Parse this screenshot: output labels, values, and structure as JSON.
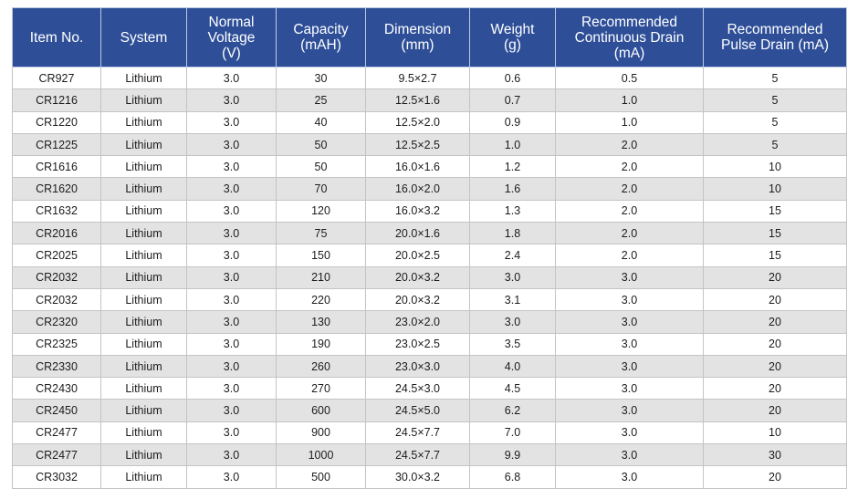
{
  "headers": [
    "Item No.",
    "System",
    "Normal\nVoltage\n(V)",
    "Capacity\n(mAH)",
    "Dimension\n(mm)",
    "Weight\n(g)",
    "Recommended\nContinuous Drain\n(mA)",
    "Recommended\nPulse Drain (mA)"
  ],
  "rows": [
    [
      "CR927",
      "Lithium",
      "3.0",
      "30",
      "9.5×2.7",
      "0.6",
      "0.5",
      "5"
    ],
    [
      "CR1216",
      "Lithium",
      "3.0",
      "25",
      "12.5×1.6",
      "0.7",
      "1.0",
      "5"
    ],
    [
      "CR1220",
      "Lithium",
      "3.0",
      "40",
      "12.5×2.0",
      "0.9",
      "1.0",
      "5"
    ],
    [
      "CR1225",
      "Lithium",
      "3.0",
      "50",
      "12.5×2.5",
      "1.0",
      "2.0",
      "5"
    ],
    [
      "CR1616",
      "Lithium",
      "3.0",
      "50",
      "16.0×1.6",
      "1.2",
      "2.0",
      "10"
    ],
    [
      "CR1620",
      "Lithium",
      "3.0",
      "70",
      "16.0×2.0",
      "1.6",
      "2.0",
      "10"
    ],
    [
      "CR1632",
      "Lithium",
      "3.0",
      "120",
      "16.0×3.2",
      "1.3",
      "2.0",
      "15"
    ],
    [
      "CR2016",
      "Lithium",
      "3.0",
      "75",
      "20.0×1.6",
      "1.8",
      "2.0",
      "15"
    ],
    [
      "CR2025",
      "Lithium",
      "3.0",
      "150",
      "20.0×2.5",
      "2.4",
      "2.0",
      "15"
    ],
    [
      "CR2032",
      "Lithium",
      "3.0",
      "210",
      "20.0×3.2",
      "3.0",
      "3.0",
      "20"
    ],
    [
      "CR2032",
      "Lithium",
      "3.0",
      "220",
      "20.0×3.2",
      "3.1",
      "3.0",
      "20"
    ],
    [
      "CR2320",
      "Lithium",
      "3.0",
      "130",
      "23.0×2.0",
      "3.0",
      "3.0",
      "20"
    ],
    [
      "CR2325",
      "Lithium",
      "3.0",
      "190",
      "23.0×2.5",
      "3.5",
      "3.0",
      "20"
    ],
    [
      "CR2330",
      "Lithium",
      "3.0",
      "260",
      "23.0×3.0",
      "4.0",
      "3.0",
      "20"
    ],
    [
      "CR2430",
      "Lithium",
      "3.0",
      "270",
      "24.5×3.0",
      "4.5",
      "3.0",
      "20"
    ],
    [
      "CR2450",
      "Lithium",
      "3.0",
      "600",
      "24.5×5.0",
      "6.2",
      "3.0",
      "20"
    ],
    [
      "CR2477",
      "Lithium",
      "3.0",
      "900",
      "24.5×7.7",
      "7.0",
      "3.0",
      "10"
    ],
    [
      "CR2477",
      "Lithium",
      "3.0",
      "1000",
      "24.5×7.7",
      "9.9",
      "3.0",
      "30"
    ],
    [
      "CR3032",
      "Lithium",
      "3.0",
      "500",
      "30.0×3.2",
      "6.8",
      "3.0",
      "20"
    ]
  ],
  "colors": {
    "header_background": "#2e4f98",
    "header_text": "#ffffff",
    "stripe": "#e3e3e3"
  }
}
